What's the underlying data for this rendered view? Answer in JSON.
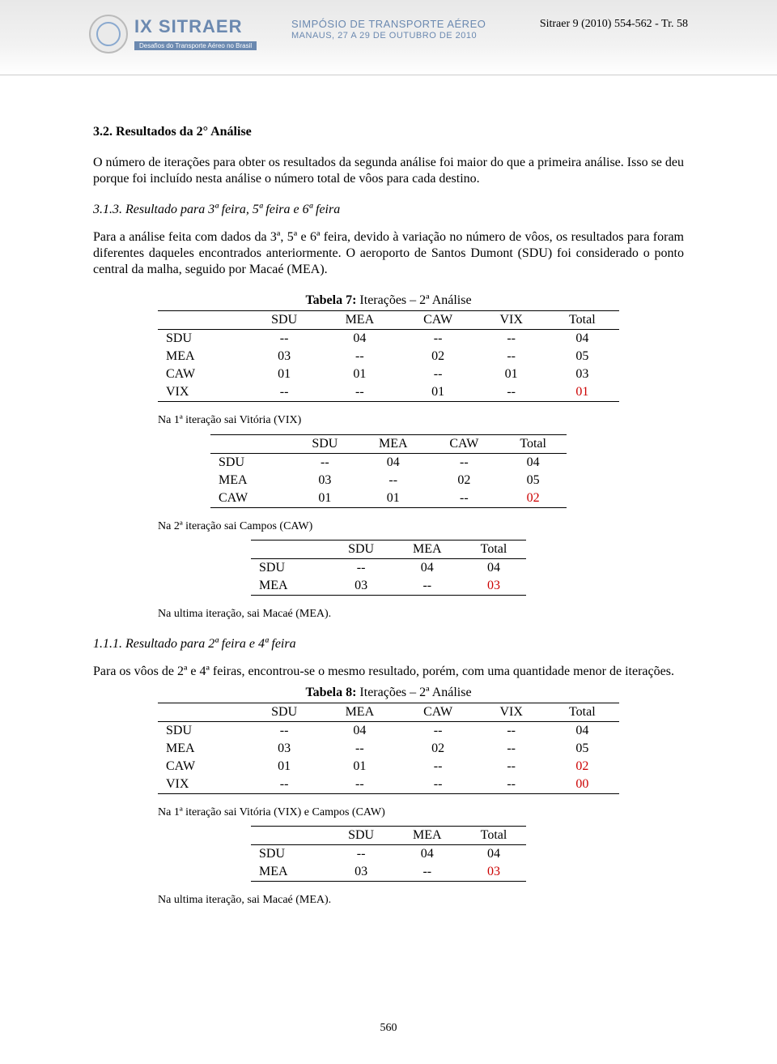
{
  "header": {
    "logo_title": "IX SITRAER",
    "logo_subtitle": "Desafios do Transporte Aéreo no Brasil",
    "symposium_line1": "SIMPÓSIO DE TRANSPORTE AÉREO",
    "symposium_line2": "MANAUS, 27 A 29 DE OUTUBRO DE 2010",
    "doc_ref": "Sitraer 9 (2010) 554-562 - Tr. 58"
  },
  "section": {
    "num": "3.2.",
    "title": "Resultados da 2° Análise",
    "para1": "O número de iterações para obter os resultados da segunda análise foi maior do que a primeira análise. Isso se deu porque foi incluído nesta análise o número total de vôos para cada destino.",
    "sub1_num": "3.1.3.",
    "sub1_title": "Resultado para 3ª feira, 5ª feira e 6ª feira",
    "para2": "Para a análise feita com dados da 3ª, 5ª e 6ª feira, devido à variação no número de vôos, os resultados para foram diferentes daqueles encontrados anteriormente. O aeroporto de Santos Dumont (SDU) foi considerado o ponto central da malha, seguido por Macaé (MEA).",
    "sub2_num": "1.1.1.",
    "sub2_title": "Resultado para 2ª feira e 4ª feira",
    "para3": "Para os vôos de 2ª e 4ª feiras, encontrou-se o mesmo resultado, porém, com uma quantidade menor de iterações.",
    "note1": "Na 1ª iteração sai Vitória (VIX)",
    "note2": "Na 2ª iteração sai Campos (CAW)",
    "note3": "Na ultima iteração, sai Macaé (MEA).",
    "note4": "Na 1ª iteração sai Vitória (VIX) e Campos (CAW)",
    "note5": "Na ultima iteração, sai Macaé (MEA)."
  },
  "table7": {
    "caption_bold": "Tabela 7:",
    "caption_rest": " Iterações – 2ª Análise",
    "columns": [
      "SDU",
      "MEA",
      "CAW",
      "VIX",
      "Total"
    ],
    "row_labels": [
      "SDU",
      "MEA",
      "CAW",
      "VIX"
    ],
    "rows": [
      [
        "--",
        "04",
        "--",
        "--",
        "04"
      ],
      [
        "03",
        "--",
        "02",
        "--",
        "05"
      ],
      [
        "01",
        "01",
        "--",
        "01",
        "03"
      ],
      [
        "--",
        "--",
        "01",
        "--",
        "01"
      ]
    ],
    "red_cells": [
      [
        3,
        4
      ]
    ]
  },
  "table7b": {
    "columns": [
      "SDU",
      "MEA",
      "CAW",
      "Total"
    ],
    "row_labels": [
      "SDU",
      "MEA",
      "CAW"
    ],
    "rows": [
      [
        "--",
        "04",
        "--",
        "04"
      ],
      [
        "03",
        "--",
        "02",
        "05"
      ],
      [
        "01",
        "01",
        "--",
        "02"
      ]
    ],
    "red_cells": [
      [
        2,
        3
      ]
    ]
  },
  "table7c": {
    "columns": [
      "SDU",
      "MEA",
      "Total"
    ],
    "row_labels": [
      "SDU",
      "MEA"
    ],
    "rows": [
      [
        "--",
        "04",
        "04"
      ],
      [
        "03",
        "--",
        "03"
      ]
    ],
    "red_cells": [
      [
        1,
        2
      ]
    ]
  },
  "table8": {
    "caption_bold": "Tabela 8:",
    "caption_rest": " Iterações – 2ª Análise",
    "columns": [
      "SDU",
      "MEA",
      "CAW",
      "VIX",
      "Total"
    ],
    "row_labels": [
      "SDU",
      "MEA",
      "CAW",
      "VIX"
    ],
    "rows": [
      [
        "--",
        "04",
        "--",
        "--",
        "04"
      ],
      [
        "03",
        "--",
        "02",
        "--",
        "05"
      ],
      [
        "01",
        "01",
        "--",
        "--",
        "02"
      ],
      [
        "--",
        "--",
        "--",
        "--",
        "00"
      ]
    ],
    "red_cells": [
      [
        2,
        4
      ],
      [
        3,
        4
      ]
    ]
  },
  "table8b": {
    "columns": [
      "SDU",
      "MEA",
      "Total"
    ],
    "row_labels": [
      "SDU",
      "MEA"
    ],
    "rows": [
      [
        "--",
        "04",
        "04"
      ],
      [
        "03",
        "--",
        "03"
      ]
    ],
    "red_cells": [
      [
        1,
        2
      ]
    ]
  },
  "page_number": "560",
  "colors": {
    "red": "#cc0000",
    "header_gradient_top": "#e8e8e8",
    "header_accent": "#6b89b0"
  }
}
